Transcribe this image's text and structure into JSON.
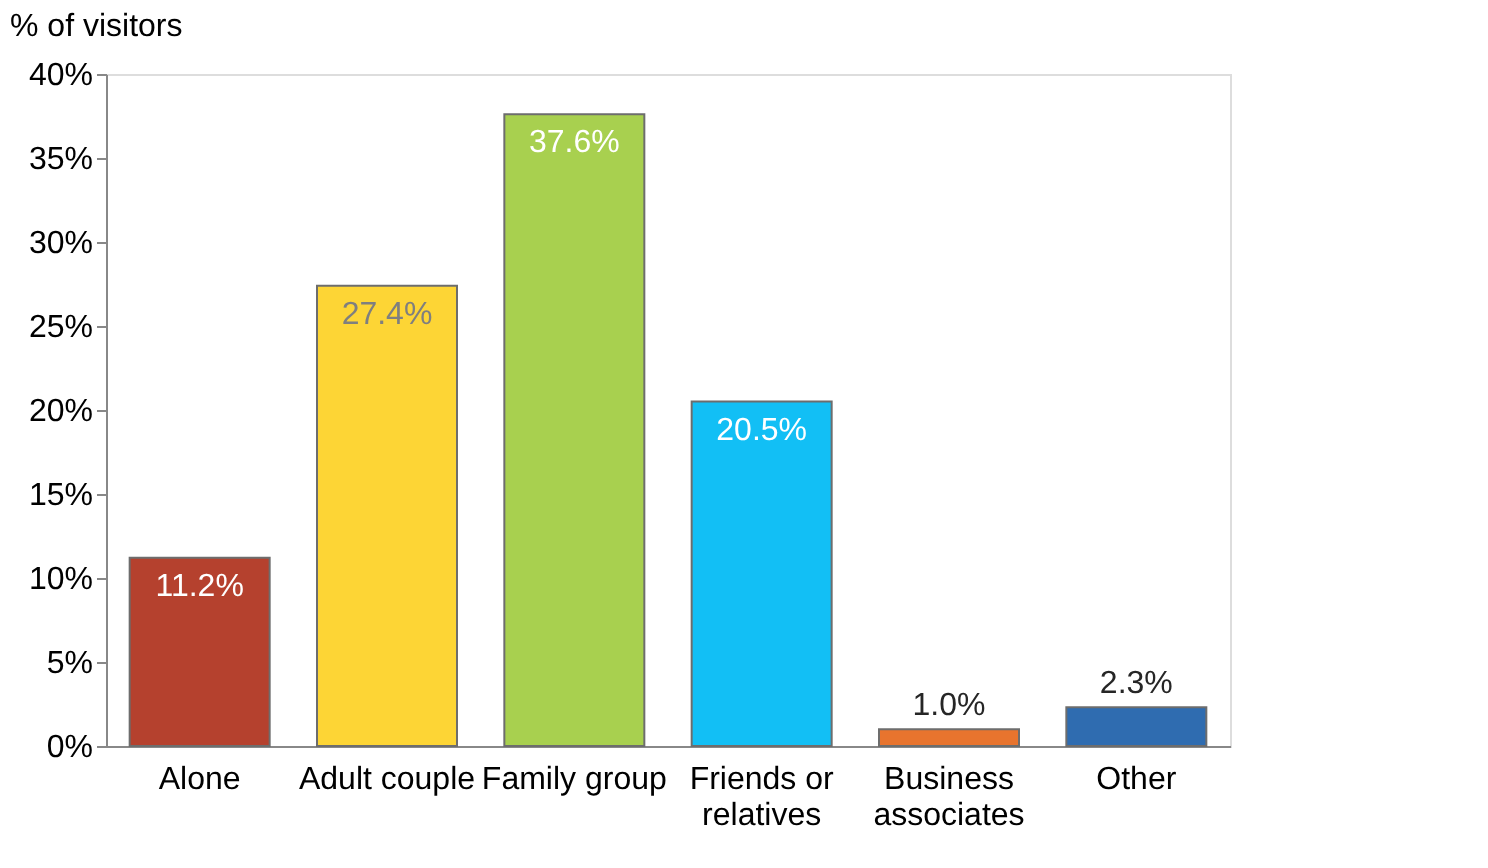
{
  "chart_data": {
    "type": "bar",
    "ylabel": "% of visitors",
    "categories": [
      "Alone",
      "Adult couple",
      "Family group",
      "Friends or relatives",
      "Business associates",
      "Other"
    ],
    "values": [
      11.2,
      27.4,
      37.6,
      20.5,
      1.0,
      2.3
    ],
    "value_labels": [
      "11.2%",
      "27.4%",
      "37.6%",
      "20.5%",
      "1.0%",
      "2.3%"
    ],
    "colors": [
      "#b5412e",
      "#fdd535",
      "#a8d04f",
      "#12bff5",
      "#e8742e",
      "#2f6cb0"
    ],
    "ylim": [
      0,
      40
    ],
    "yticks": [
      {
        "value": 0,
        "label": "0%"
      },
      {
        "value": 5,
        "label": "5%"
      },
      {
        "value": 10,
        "label": "10%"
      },
      {
        "value": 15,
        "label": "15%"
      },
      {
        "value": 20,
        "label": "20%"
      },
      {
        "value": 25,
        "label": "25%"
      },
      {
        "value": 30,
        "label": "30%"
      },
      {
        "value": 35,
        "label": "35%"
      },
      {
        "value": 40,
        "label": "40%"
      }
    ],
    "grid": false
  }
}
